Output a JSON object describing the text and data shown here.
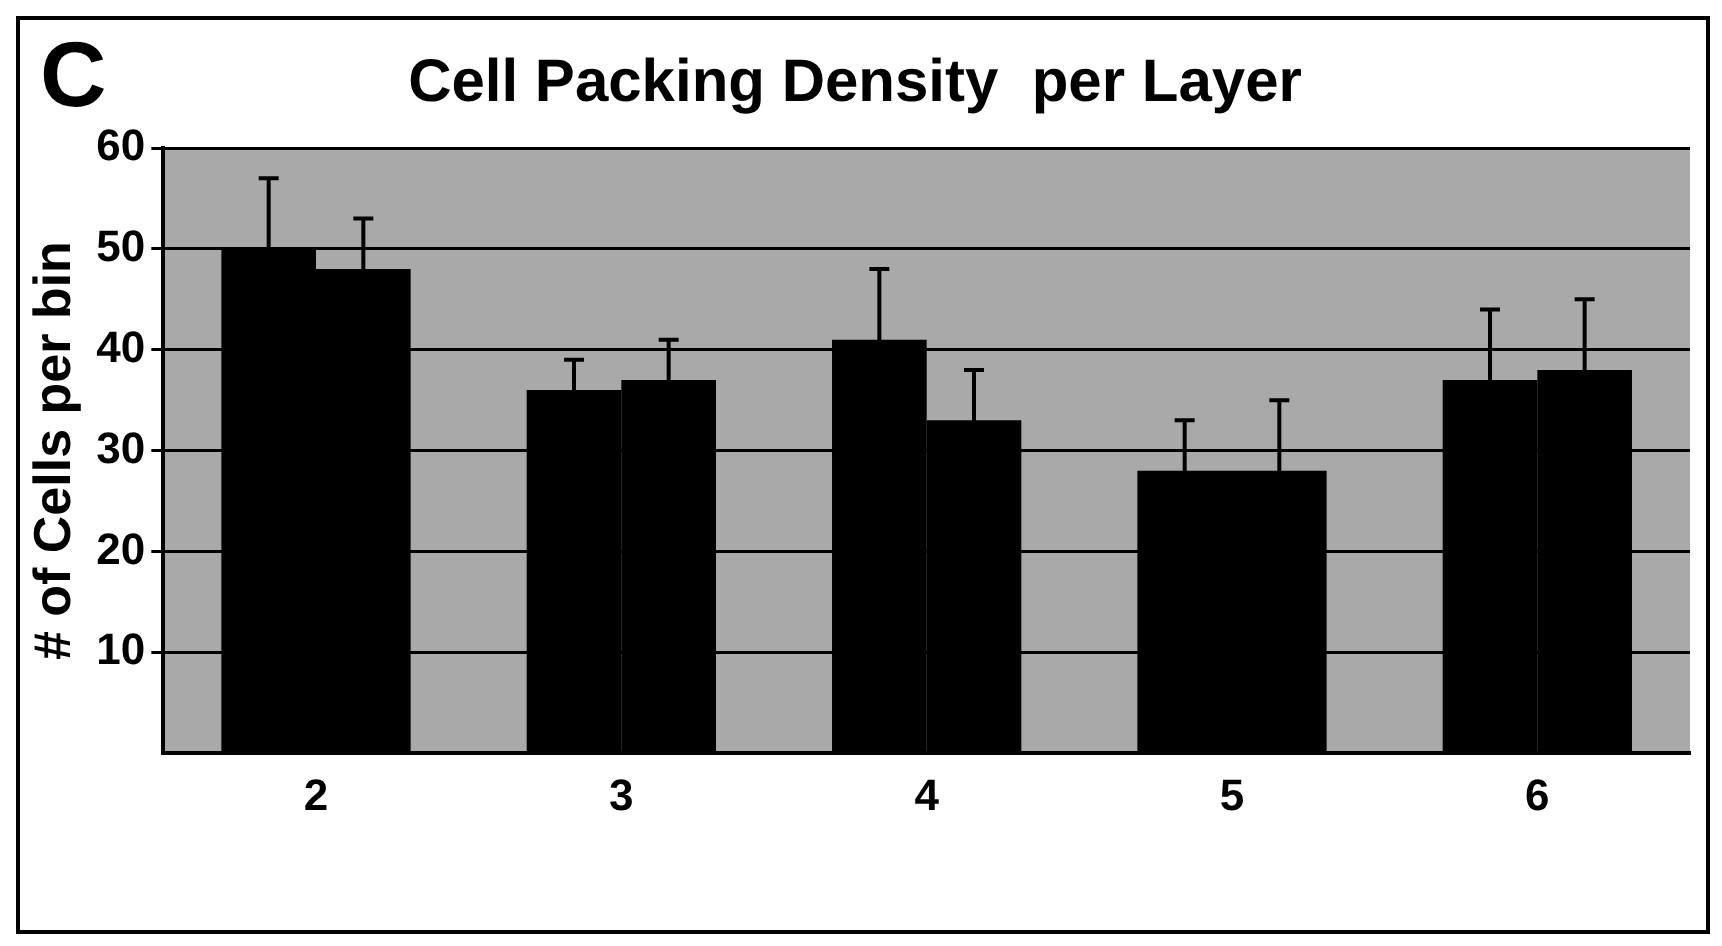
{
  "chart_data": {
    "type": "bar",
    "title": "Cell Packing Density  per Layer",
    "ylabel": "# of Cells per bin",
    "annotations": [
      "C"
    ],
    "categories": [
      "2",
      "3",
      "4",
      "5",
      "6"
    ],
    "series": [
      {
        "color": "#000000",
        "values": [
          50,
          36,
          41,
          28,
          37
        ],
        "errors": [
          7,
          3,
          7,
          5,
          7
        ]
      },
      {
        "color": "#000000",
        "values": [
          48,
          37,
          33,
          28,
          38
        ],
        "errors": [
          5,
          4,
          5,
          7,
          7
        ]
      }
    ],
    "ylim": [
      0,
      60
    ],
    "yticks": [
      10,
      20,
      30,
      40,
      50,
      60
    ],
    "grid": "y",
    "legend": false
  }
}
